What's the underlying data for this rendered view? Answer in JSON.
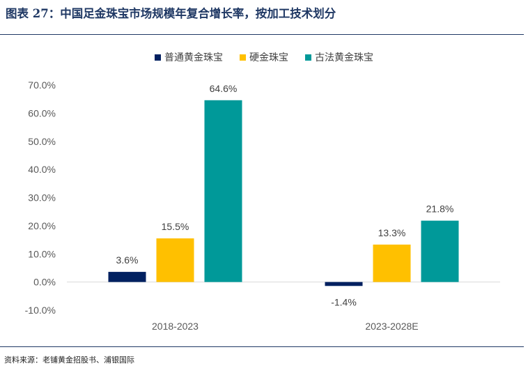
{
  "title": "图表 27：中国足金珠宝市场规模年复合增长率，按加工技术划分",
  "source": "资料来源：老铺黄金招股书、浦银国际",
  "colors": {
    "title": "#1f3864",
    "axis_text": "#595959",
    "label_text": "#404040"
  },
  "chart_data": {
    "type": "bar",
    "title": "",
    "xlabel": "",
    "ylabel": "",
    "categories": [
      "2018-2023",
      "2023-2028E"
    ],
    "series": [
      {
        "name": "普通黄金珠宝",
        "color": "#002060",
        "values": [
          3.6,
          -1.4
        ],
        "labels": [
          "3.6%",
          "-1.4%"
        ]
      },
      {
        "name": "硬金珠宝",
        "color": "#ffc000",
        "values": [
          15.5,
          13.3
        ],
        "labels": [
          "15.5%",
          "13.3%"
        ]
      },
      {
        "name": "古法黄金珠宝",
        "color": "#009999",
        "values": [
          64.6,
          21.8
        ],
        "labels": [
          "64.6%",
          "21.8%"
        ]
      }
    ],
    "ylim": [
      -10,
      70
    ],
    "yticks": [
      -10,
      0,
      10,
      20,
      30,
      40,
      50,
      60,
      70
    ],
    "ytick_labels": [
      "-10.0%",
      "0.0%",
      "10.0%",
      "20.0%",
      "30.0%",
      "40.0%",
      "50.0%",
      "60.0%",
      "70.0%"
    ],
    "grid": false,
    "legend_position": "top-center"
  }
}
